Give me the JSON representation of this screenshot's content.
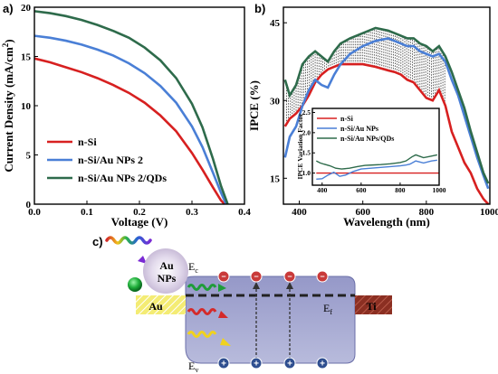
{
  "panels": {
    "a": "a)",
    "b": "b)",
    "c": "c)"
  },
  "colors": {
    "red": "#d72020",
    "blue": "#4a7fd6",
    "green": "#2e6b4b"
  },
  "chart_data": [
    {
      "id": "a",
      "type": "line",
      "xlabel": "Voltage (V)",
      "ylabel": "Current Density (mA/cm2)",
      "xlim": [
        0.0,
        0.4
      ],
      "ylim": [
        0,
        20
      ],
      "xticks": [
        0.0,
        0.1,
        0.2,
        0.3,
        0.4
      ],
      "yticks": [
        0,
        5,
        10,
        15,
        20
      ],
      "legend_position": "bottom-left",
      "series": [
        {
          "name": "n-Si",
          "color": "#d72020",
          "x": [
            0,
            0.03,
            0.06,
            0.09,
            0.12,
            0.15,
            0.18,
            0.21,
            0.24,
            0.27,
            0.3,
            0.32,
            0.34,
            0.355,
            0.362
          ],
          "y": [
            14.8,
            14.4,
            13.9,
            13.4,
            12.8,
            12.1,
            11.3,
            10.3,
            9.0,
            7.4,
            5.2,
            3.5,
            1.7,
            0.4,
            0
          ]
        },
        {
          "name": "n-Si/Au NPs 2",
          "color": "#4a7fd6",
          "x": [
            0,
            0.03,
            0.06,
            0.09,
            0.12,
            0.15,
            0.18,
            0.21,
            0.24,
            0.27,
            0.3,
            0.32,
            0.34,
            0.355,
            0.365
          ],
          "y": [
            17.1,
            16.9,
            16.6,
            16.2,
            15.7,
            15.1,
            14.3,
            13.3,
            12.0,
            10.3,
            7.9,
            5.8,
            3.2,
            1.2,
            0
          ]
        },
        {
          "name": "n-Si/Au NPs 2/QDs",
          "color": "#2e6b4b",
          "x": [
            0,
            0.03,
            0.06,
            0.09,
            0.12,
            0.15,
            0.18,
            0.21,
            0.24,
            0.27,
            0.3,
            0.32,
            0.34,
            0.355,
            0.368
          ],
          "y": [
            19.6,
            19.4,
            19.1,
            18.7,
            18.2,
            17.6,
            16.9,
            15.9,
            14.6,
            12.8,
            10.2,
            7.8,
            4.6,
            1.9,
            0
          ]
        }
      ]
    },
    {
      "id": "b",
      "type": "line",
      "xlabel": "Wavelength (nm)",
      "ylabel": "IPCE (%)",
      "xlim": [
        350,
        1000
      ],
      "ylim": [
        10,
        48
      ],
      "xticks": [
        400,
        600,
        800,
        1000
      ],
      "yticks": [
        15,
        30,
        45
      ],
      "series": [
        {
          "name": "n-Si",
          "color": "#d72020",
          "x": [
            355,
            370,
            390,
            410,
            430,
            450,
            470,
            490,
            510,
            530,
            560,
            600,
            640,
            680,
            700,
            720,
            740,
            760,
            780,
            800,
            820,
            840,
            860,
            880,
            900,
            920,
            940,
            960,
            980,
            995
          ],
          "y": [
            25,
            26.5,
            27.5,
            29,
            31,
            33.5,
            35,
            36,
            36.5,
            37,
            37,
            37,
            36.5,
            35.8,
            35.5,
            35,
            34,
            33.5,
            32,
            30.5,
            30,
            32,
            29,
            24,
            21,
            18,
            16,
            13,
            11,
            10
          ]
        },
        {
          "name": "n-Si/Au NPs",
          "color": "#4a7fd6",
          "x": [
            355,
            370,
            390,
            410,
            430,
            450,
            470,
            490,
            510,
            530,
            560,
            600,
            640,
            680,
            700,
            720,
            740,
            760,
            780,
            800,
            820,
            840,
            860,
            880,
            900,
            920,
            940,
            960,
            980,
            995
          ],
          "y": [
            19,
            23,
            25,
            29,
            32,
            34,
            33,
            32.5,
            35,
            37,
            39,
            40.5,
            41.5,
            42,
            41.5,
            41,
            40.5,
            40.5,
            39.5,
            39,
            38.5,
            39,
            37.5,
            34,
            31,
            27,
            23,
            19,
            15.5,
            13
          ]
        },
        {
          "name": "n-Si/Au NPs/QDs",
          "color": "#2e6b4b",
          "x": [
            355,
            370,
            390,
            410,
            430,
            450,
            470,
            490,
            510,
            530,
            560,
            600,
            640,
            680,
            700,
            720,
            740,
            760,
            780,
            800,
            820,
            840,
            860,
            880,
            900,
            920,
            940,
            960,
            980,
            995
          ],
          "y": [
            34,
            31,
            33,
            37,
            38.5,
            39.5,
            38.5,
            37.5,
            39.5,
            41,
            42,
            43,
            44,
            43.5,
            43,
            42.5,
            42,
            42,
            41,
            40.5,
            39.5,
            40.5,
            38.5,
            35.5,
            32,
            28.5,
            24,
            20,
            16,
            14
          ]
        }
      ]
    },
    {
      "id": "b-inset",
      "type": "line",
      "ylabel": "IPCE Variation Factor",
      "xlim": [
        350,
        1000
      ],
      "ylim": [
        0.7,
        2.6
      ],
      "xticks": [
        400,
        600,
        800,
        1000
      ],
      "yticks": [
        1.0,
        1.5,
        2.0,
        2.5
      ],
      "legend_position": "top-left",
      "series": [
        {
          "name": "n-Si",
          "color": "#d72020",
          "x": [
            370,
            1000
          ],
          "y": [
            1.0,
            1.0
          ]
        },
        {
          "name": "n-Si/Au NPs",
          "color": "#4a7fd6",
          "x": [
            370,
            400,
            430,
            460,
            490,
            520,
            560,
            600,
            650,
            700,
            750,
            800,
            830,
            850,
            880,
            920,
            960,
            990
          ],
          "y": [
            0.85,
            0.86,
            0.95,
            1.02,
            0.92,
            0.95,
            1.04,
            1.1,
            1.12,
            1.14,
            1.16,
            1.18,
            1.2,
            1.22,
            1.3,
            1.25,
            1.3,
            1.32
          ]
        },
        {
          "name": "n-Si/Au NPs/QDs",
          "color": "#2e6b4b",
          "x": [
            370,
            390,
            410,
            440,
            470,
            500,
            540,
            580,
            620,
            660,
            700,
            750,
            800,
            830,
            860,
            880,
            920,
            960,
            990
          ],
          "y": [
            1.3,
            1.25,
            1.22,
            1.18,
            1.12,
            1.1,
            1.12,
            1.16,
            1.19,
            1.2,
            1.21,
            1.23,
            1.26,
            1.3,
            1.4,
            1.45,
            1.38,
            1.42,
            1.45
          ]
        }
      ]
    }
  ],
  "diagram": {
    "au_nps": "Au\nNPs",
    "ec": "E",
    "ec_sub": "c",
    "ev": "E",
    "ev_sub": "v",
    "ef": "E",
    "ef_sub": "f",
    "au": "Au",
    "ti": "Ti",
    "electron": "−",
    "hole": "+"
  }
}
